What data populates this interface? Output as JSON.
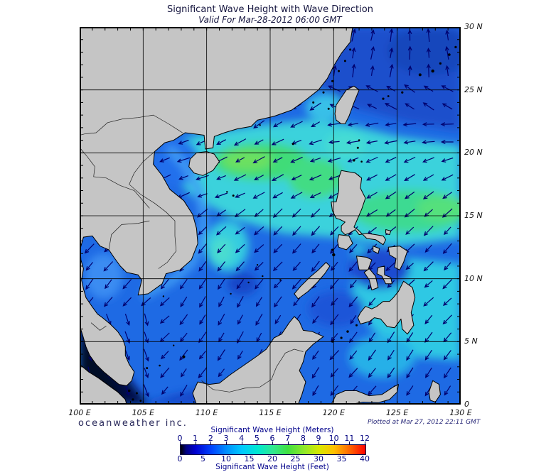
{
  "header": {
    "title": "Significant Wave Height with Wave Direction",
    "valid_time": "Valid For Mar-28-2012 06:00 GMT"
  },
  "axes": {
    "lat_labels": [
      [
        "30 N",
        30
      ],
      [
        "25 N",
        25
      ],
      [
        "20 N",
        20
      ],
      [
        "15 N",
        15
      ],
      [
        "10 N",
        10
      ],
      [
        "5 N",
        5
      ],
      [
        "0",
        0
      ]
    ],
    "lon_labels": [
      [
        "100 E",
        100
      ],
      [
        "105 E",
        105
      ],
      [
        "110 E",
        110
      ],
      [
        "115 E",
        115
      ],
      [
        "120 E",
        120
      ],
      [
        "125 E",
        125
      ],
      [
        "130 E",
        130
      ]
    ]
  },
  "legend": {
    "meters_title": "Significant Wave Height (Meters)",
    "feet_title": "Significant Wave Height (Feet)",
    "meters_ticks": [
      0,
      1,
      2,
      3,
      4,
      5,
      6,
      7,
      8,
      9,
      10,
      11,
      12
    ],
    "feet_ticks": [
      0,
      5,
      10,
      15,
      20,
      25,
      30,
      35,
      40
    ],
    "gradient_stops": [
      [
        "0%",
        "#000000"
      ],
      [
        "3%",
        "#000080"
      ],
      [
        "8%",
        "#0000d0"
      ],
      [
        "17%",
        "#0045ff"
      ],
      [
        "25%",
        "#0090ff"
      ],
      [
        "33%",
        "#00c8ff"
      ],
      [
        "42%",
        "#00e8d0"
      ],
      [
        "50%",
        "#30e890"
      ],
      [
        "58%",
        "#40e040"
      ],
      [
        "67%",
        "#90e828"
      ],
      [
        "75%",
        "#d8e800"
      ],
      [
        "83%",
        "#ffc000"
      ],
      [
        "92%",
        "#ff6000"
      ],
      [
        "100%",
        "#ff0000"
      ]
    ]
  },
  "footer": {
    "brand": "oceanweather inc.",
    "plotted_at": "Plotted at Mar 27, 2012 22:11 GMT"
  },
  "map_info": {
    "lon_range": [
      100,
      130
    ],
    "lat_range": [
      0,
      30
    ],
    "land_color": "#c5c5c5",
    "coast_color": "#000000",
    "arrow_color": "#00006e",
    "ocean_base_color": "#1e6ae4",
    "grid_color": "#000000"
  }
}
